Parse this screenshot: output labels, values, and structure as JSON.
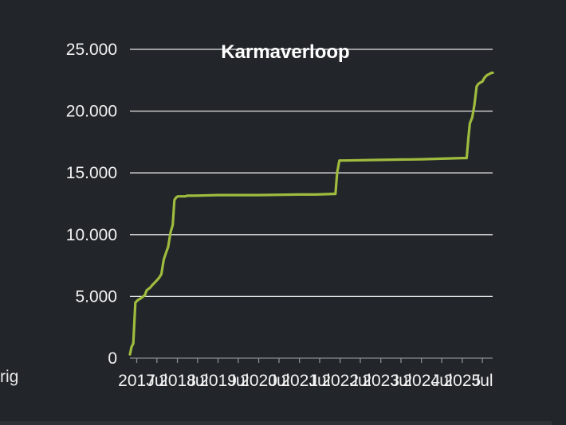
{
  "side_label": "rig",
  "chart_data": {
    "type": "line",
    "title": "Karmaverloop",
    "xlabel": "",
    "ylabel": "",
    "ylim": [
      0,
      25000
    ],
    "yticks": [
      "0",
      "5.000",
      "10.000",
      "15.000",
      "20.000",
      "25.000"
    ],
    "ytick_values": [
      0,
      5000,
      10000,
      15000,
      20000,
      25000
    ],
    "xtick_labels": [
      "2017",
      "Jul",
      "2018",
      "Jul",
      "2019",
      "Jul",
      "2020",
      "Jul",
      "2021",
      "Jul",
      "2022",
      "Jul",
      "2023",
      "Jul",
      "2024",
      "Jul",
      "2025",
      "Jul"
    ],
    "xlim": [
      "2016-11-01",
      "2025-10-01"
    ],
    "grid": true,
    "legend": "none",
    "line_color": "#9fbc3f",
    "series": [
      {
        "x": [
          "2016-11-01",
          "2016-11-15",
          "2016-12-01",
          "2016-12-20",
          "2017-01-10",
          "2017-02-15",
          "2017-03-15",
          "2017-04-01",
          "2017-05-01",
          "2017-05-20",
          "2017-06-10",
          "2017-07-01",
          "2017-07-20",
          "2017-08-10",
          "2017-09-01",
          "2017-09-20",
          "2017-10-10",
          "2017-11-01",
          "2017-11-20",
          "2017-12-05",
          "2017-12-20",
          "2018-01-05",
          "2018-01-20",
          "2018-02-10",
          "2018-02-25",
          "2018-03-10",
          "2018-04-01",
          "2018-06-01",
          "2019-01-01",
          "2020-01-01",
          "2021-01-01",
          "2021-06-01",
          "2021-11-01",
          "2021-11-20",
          "2021-12-05",
          "2021-12-25",
          "2022-02-01",
          "2023-01-01",
          "2024-01-01",
          "2024-07-01",
          "2025-01-01",
          "2025-02-10",
          "2025-02-25",
          "2025-03-10",
          "2025-04-01",
          "2025-04-20",
          "2025-05-10",
          "2025-05-25",
          "2025-06-10",
          "2025-07-01",
          "2025-07-20",
          "2025-08-10",
          "2025-09-01",
          "2025-09-20",
          "2025-10-01"
        ],
        "y": [
          300,
          900,
          1200,
          4500,
          4700,
          4900,
          5100,
          5500,
          5700,
          5900,
          6100,
          6300,
          6500,
          6800,
          8000,
          8500,
          9000,
          10200,
          10800,
          12800,
          13000,
          13100,
          13100,
          13100,
          13100,
          13100,
          13150,
          13150,
          13200,
          13200,
          13250,
          13250,
          13300,
          13300,
          15000,
          16000,
          16000,
          16050,
          16100,
          16150,
          16200,
          16200,
          17800,
          19000,
          19500,
          20500,
          22000,
          22200,
          22300,
          22400,
          22700,
          22900,
          23000,
          23100,
          23100
        ]
      }
    ]
  }
}
